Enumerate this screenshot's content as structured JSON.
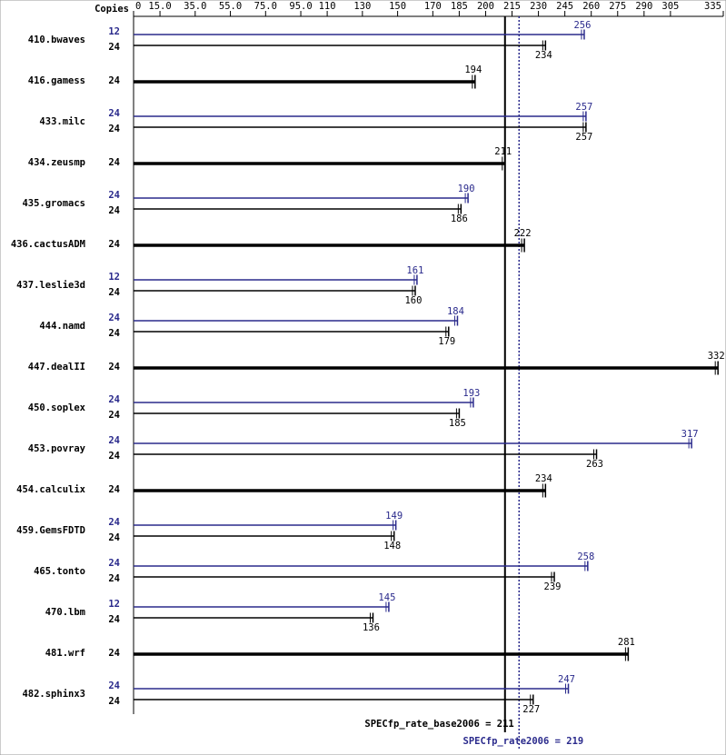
{
  "chart_data": {
    "type": "bar",
    "copies_label": "Copies",
    "xlim": [
      0,
      335
    ],
    "xticks": [
      0,
      {
        "value": 15,
        "label": "15.0"
      },
      {
        "value": 35,
        "label": "35.0"
      },
      {
        "value": 55,
        "label": "55.0"
      },
      {
        "value": 75,
        "label": "75.0"
      },
      {
        "value": 95,
        "label": "95.0"
      },
      110,
      130,
      150,
      170,
      185,
      200,
      215,
      230,
      245,
      260,
      275,
      290,
      305,
      335
    ],
    "base_color": "#000000",
    "peak_color": "#2a2a8c",
    "benchmarks": [
      {
        "name": "410.bwaves",
        "peak": {
          "copies": 12,
          "value": 256
        },
        "base": {
          "copies": 24,
          "value": 234
        }
      },
      {
        "name": "416.gamess",
        "base": {
          "copies": 24,
          "value": 194
        }
      },
      {
        "name": "433.milc",
        "peak": {
          "copies": 24,
          "value": 257
        },
        "base": {
          "copies": 24,
          "value": 257
        }
      },
      {
        "name": "434.zeusmp",
        "base": {
          "copies": 24,
          "value": 211
        }
      },
      {
        "name": "435.gromacs",
        "peak": {
          "copies": 24,
          "value": 190
        },
        "base": {
          "copies": 24,
          "value": 186
        }
      },
      {
        "name": "436.cactusADM",
        "base": {
          "copies": 24,
          "value": 222
        }
      },
      {
        "name": "437.leslie3d",
        "peak": {
          "copies": 12,
          "value": 161
        },
        "base": {
          "copies": 24,
          "value": 160
        }
      },
      {
        "name": "444.namd",
        "peak": {
          "copies": 24,
          "value": 184
        },
        "base": {
          "copies": 24,
          "value": 179
        }
      },
      {
        "name": "447.dealII",
        "base": {
          "copies": 24,
          "value": 332
        }
      },
      {
        "name": "450.soplex",
        "peak": {
          "copies": 24,
          "value": 193
        },
        "base": {
          "copies": 24,
          "value": 185
        }
      },
      {
        "name": "453.povray",
        "peak": {
          "copies": 24,
          "value": 317
        },
        "base": {
          "copies": 24,
          "value": 263
        }
      },
      {
        "name": "454.calculix",
        "base": {
          "copies": 24,
          "value": 234
        }
      },
      {
        "name": "459.GemsFDTD",
        "peak": {
          "copies": 24,
          "value": 149
        },
        "base": {
          "copies": 24,
          "value": 148
        }
      },
      {
        "name": "465.tonto",
        "peak": {
          "copies": 24,
          "value": 258
        },
        "base": {
          "copies": 24,
          "value": 239
        }
      },
      {
        "name": "470.lbm",
        "peak": {
          "copies": 12,
          "value": 145
        },
        "base": {
          "copies": 24,
          "value": 136
        }
      },
      {
        "name": "481.wrf",
        "base": {
          "copies": 24,
          "value": 281
        }
      },
      {
        "name": "482.sphinx3",
        "peak": {
          "copies": 24,
          "value": 247
        },
        "base": {
          "copies": 24,
          "value": 227
        }
      }
    ],
    "base_line": {
      "label": "SPECfp_rate_base2006 = 211",
      "value": 211
    },
    "peak_line": {
      "label": "SPECfp_rate2006 = 219",
      "value": 219
    }
  }
}
